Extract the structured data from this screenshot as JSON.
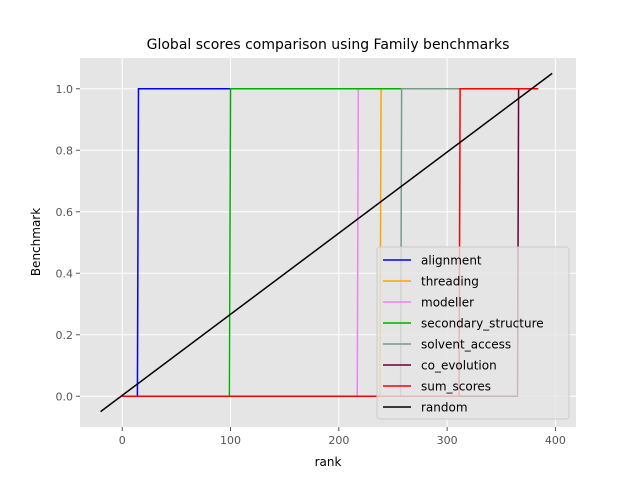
{
  "chart_data": {
    "type": "line",
    "title": "Global scores comparison using Family benchmarks",
    "xlabel": "rank",
    "ylabel": "Benchmark",
    "xlim": [
      -39,
      419
    ],
    "ylim": [
      -0.1,
      1.1
    ],
    "xticks": [
      0,
      100,
      200,
      300,
      400
    ],
    "yticks": [
      0.0,
      0.2,
      0.4,
      0.6,
      0.8,
      1.0
    ],
    "xtick_labels": [
      "0",
      "100",
      "200",
      "300",
      "400"
    ],
    "ytick_labels": [
      "0.0",
      "0.2",
      "0.4",
      "0.6",
      "0.8",
      "1.0"
    ],
    "grid": true,
    "legend_position": "lower right",
    "series": [
      {
        "name": "alignment",
        "color": "#0000ff",
        "x": [
          0,
          14,
          15,
          384
        ],
        "y": [
          0,
          0,
          1,
          1
        ]
      },
      {
        "name": "threading",
        "color": "#ffa500",
        "x": [
          0,
          238,
          239,
          384
        ],
        "y": [
          0,
          0,
          1,
          1
        ]
      },
      {
        "name": "modeller",
        "color": "#ee82ee",
        "x": [
          0,
          217,
          218,
          384
        ],
        "y": [
          0,
          0,
          1,
          1
        ]
      },
      {
        "name": "secondary_structure",
        "color": "#00b000",
        "x": [
          0,
          99,
          100,
          384
        ],
        "y": [
          0,
          0,
          1,
          1
        ]
      },
      {
        "name": "solvent_access",
        "color": "#7a9a8a",
        "x": [
          0,
          257,
          258,
          384
        ],
        "y": [
          0,
          0,
          1,
          1
        ]
      },
      {
        "name": "co_evolution",
        "color": "#6b0030",
        "x": [
          0,
          365,
          366,
          384
        ],
        "y": [
          0,
          0,
          1,
          1
        ]
      },
      {
        "name": "sum_scores",
        "color": "#ff0000",
        "x": [
          0,
          311,
          312,
          384
        ],
        "y": [
          0,
          0,
          1,
          1
        ]
      },
      {
        "name": "random",
        "color": "#000000",
        "x": [
          -20,
          397
        ],
        "y": [
          -0.05,
          1.05
        ]
      }
    ]
  }
}
